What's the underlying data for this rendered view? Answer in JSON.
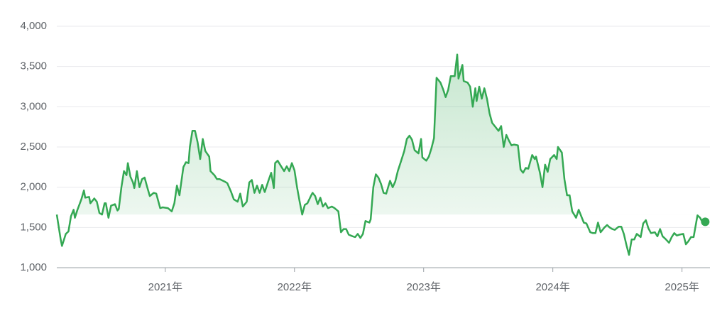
{
  "chart_data": {
    "type": "line",
    "color": "#34a853",
    "grid": true,
    "xlim": [
      2020.16,
      2025.2
    ],
    "xticks": [
      {
        "value": 2021,
        "label": "2021年"
      },
      {
        "value": 2022,
        "label": "2022年"
      },
      {
        "value": 2023,
        "label": "2023年"
      },
      {
        "value": 2024,
        "label": "2024年"
      },
      {
        "value": 2025,
        "label": "2025年"
      }
    ],
    "ylim": [
      1000,
      4000
    ],
    "yticks": [
      {
        "value": 1000,
        "label": "1,000"
      },
      {
        "value": 1500,
        "label": "1,500"
      },
      {
        "value": 2000,
        "label": "2,000"
      },
      {
        "value": 2500,
        "label": "2,500"
      },
      {
        "value": 3000,
        "label": "3,000"
      },
      {
        "value": 3500,
        "label": "3,500"
      },
      {
        "value": 4000,
        "label": "4,000"
      }
    ],
    "x": [
      2020.16,
      2020.19,
      2020.2,
      2020.23,
      2020.25,
      2020.27,
      2020.29,
      2020.3,
      2020.32,
      2020.35,
      2020.37,
      2020.38,
      2020.41,
      2020.42,
      2020.45,
      2020.47,
      2020.49,
      2020.51,
      2020.53,
      2020.54,
      2020.56,
      2020.58,
      2020.61,
      2020.63,
      2020.64,
      2020.66,
      2020.68,
      2020.7,
      2020.71,
      2020.73,
      2020.75,
      2020.76,
      2020.78,
      2020.8,
      2020.82,
      2020.84,
      2020.86,
      2020.88,
      2020.91,
      2020.93,
      2020.96,
      2020.98,
      2021.02,
      2021.05,
      2021.07,
      2021.09,
      2021.11,
      2021.14,
      2021.16,
      2021.18,
      2021.19,
      2021.21,
      2021.23,
      2021.25,
      2021.27,
      2021.29,
      2021.31,
      2021.34,
      2021.35,
      2021.38,
      2021.4,
      2021.42,
      2021.46,
      2021.48,
      2021.51,
      2021.53,
      2021.56,
      2021.58,
      2021.6,
      2021.63,
      2021.65,
      2021.67,
      2021.69,
      2021.71,
      2021.73,
      2021.75,
      2021.77,
      2021.8,
      2021.82,
      2021.84,
      2021.85,
      2021.87,
      2021.9,
      2021.92,
      2021.94,
      2021.96,
      2021.98,
      2022.0,
      2022.02,
      2022.04,
      2022.06,
      2022.08,
      2022.1,
      2022.13,
      2022.14,
      2022.16,
      2022.18,
      2022.2,
      2022.22,
      2022.24,
      2022.26,
      2022.29,
      2022.31,
      2022.34,
      2022.36,
      2022.38,
      2022.4,
      2022.42,
      2022.45,
      2022.47,
      2022.49,
      2022.51,
      2022.53,
      2022.55,
      2022.58,
      2022.59,
      2022.61,
      2022.63,
      2022.65,
      2022.67,
      2022.69,
      2022.71,
      2022.74,
      2022.76,
      2022.78,
      2022.8,
      2022.82,
      2022.85,
      2022.87,
      2022.89,
      2022.91,
      2022.93,
      2022.96,
      2022.98,
      2022.99,
      2023.02,
      2023.04,
      2023.06,
      2023.08,
      2023.1,
      2023.13,
      2023.15,
      2023.17,
      2023.19,
      2023.21,
      2023.24,
      2023.26,
      2023.27,
      2023.3,
      2023.31,
      2023.34,
      2023.36,
      2023.38,
      2023.4,
      2023.41,
      2023.43,
      2023.45,
      2023.47,
      2023.49,
      2023.51,
      2023.53,
      2023.55,
      2023.58,
      2023.6,
      2023.62,
      2023.64,
      2023.66,
      2023.68,
      2023.7,
      2023.73,
      2023.75,
      2023.77,
      2023.79,
      2023.81,
      2023.84,
      2023.86,
      2023.87,
      2023.9,
      2023.92,
      2023.94,
      2023.96,
      2023.98,
      2024.01,
      2024.03,
      2024.04,
      2024.07,
      2024.09,
      2024.11,
      2024.13,
      2024.15,
      2024.18,
      2024.2,
      2024.22,
      2024.24,
      2024.26,
      2024.29,
      2024.31,
      2024.33,
      2024.35,
      2024.37,
      2024.4,
      2024.42,
      2024.44,
      2024.46,
      2024.48,
      2024.51,
      2024.53,
      2024.55,
      2024.57,
      2024.59,
      2024.61,
      2024.63,
      2024.65,
      2024.68,
      2024.7,
      2024.72,
      2024.74,
      2024.76,
      2024.79,
      2024.81,
      2024.83,
      2024.85,
      2024.87,
      2024.9,
      2024.92,
      2024.94,
      2024.96,
      2024.98,
      2025.01,
      2025.03,
      2025.05,
      2025.07,
      2025.09,
      2025.12,
      2025.14,
      2025.16,
      2025.18
    ],
    "values": [
      1660,
      1350,
      1270,
      1420,
      1450,
      1640,
      1720,
      1620,
      1720,
      1850,
      1960,
      1870,
      1880,
      1800,
      1860,
      1820,
      1680,
      1660,
      1800,
      1800,
      1620,
      1770,
      1790,
      1710,
      1730,
      2000,
      2200,
      2150,
      2300,
      2130,
      2060,
      1990,
      2200,
      2000,
      2100,
      2120,
      2000,
      1890,
      1930,
      1920,
      1740,
      1750,
      1740,
      1700,
      1800,
      2020,
      1900,
      2250,
      2310,
      2300,
      2500,
      2700,
      2700,
      2560,
      2350,
      2600,
      2450,
      2380,
      2200,
      2150,
      2100,
      2100,
      2070,
      2050,
      1940,
      1850,
      1820,
      1920,
      1760,
      1820,
      2060,
      2090,
      1930,
      2020,
      1930,
      2030,
      1940,
      2090,
      2180,
      1990,
      2300,
      2330,
      2250,
      2200,
      2260,
      2200,
      2300,
      2210,
      2000,
      1820,
      1660,
      1780,
      1800,
      1900,
      1930,
      1890,
      1790,
      1870,
      1760,
      1800,
      1740,
      1760,
      1740,
      1700,
      1440,
      1480,
      1480,
      1410,
      1390,
      1380,
      1420,
      1370,
      1420,
      1580,
      1560,
      1600,
      2000,
      2160,
      2120,
      2040,
      1930,
      1920,
      2080,
      2000,
      2070,
      2200,
      2300,
      2450,
      2600,
      2640,
      2590,
      2460,
      2420,
      2600,
      2370,
      2330,
      2380,
      2480,
      2610,
      3360,
      3300,
      3220,
      3120,
      3210,
      3380,
      3380,
      3650,
      3350,
      3520,
      3320,
      3300,
      3250,
      3000,
      3230,
      3070,
      3250,
      3100,
      3230,
      3100,
      2920,
      2800,
      2760,
      2700,
      2760,
      2500,
      2650,
      2580,
      2520,
      2530,
      2520,
      2220,
      2180,
      2240,
      2230,
      2400,
      2350,
      2380,
      2180,
      2000,
      2280,
      2190,
      2350,
      2400,
      2350,
      2500,
      2430,
      2100,
      1900,
      1900,
      1700,
      1620,
      1720,
      1640,
      1560,
      1550,
      1440,
      1430,
      1430,
      1560,
      1440,
      1500,
      1530,
      1500,
      1480,
      1470,
      1510,
      1510,
      1420,
      1280,
      1160,
      1350,
      1350,
      1420,
      1380,
      1550,
      1590,
      1490,
      1430,
      1440,
      1390,
      1480,
      1390,
      1360,
      1310,
      1380,
      1430,
      1400,
      1410,
      1420,
      1290,
      1330,
      1380,
      1380,
      1650,
      1620,
      1560,
      1570
    ]
  }
}
